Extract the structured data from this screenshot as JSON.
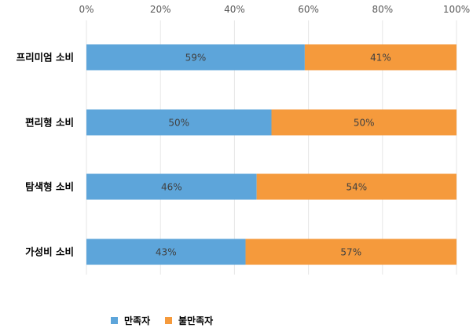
{
  "chart_data": {
    "type": "bar",
    "orientation": "horizontal",
    "stacked": true,
    "title": "",
    "xlabel": "",
    "ylabel": "",
    "xlim": [
      0,
      100
    ],
    "x_ticks": [
      "0%",
      "20%",
      "40%",
      "60%",
      "80%",
      "100%"
    ],
    "x_tick_values": [
      0,
      20,
      40,
      60,
      80,
      100
    ],
    "x_axis_position": "top",
    "grid": true,
    "legend_position": "bottom",
    "categories": [
      "프리미엄 소비",
      "편리형 소비",
      "탐색형 소비",
      "가성비 소비"
    ],
    "series": [
      {
        "name": "만족자",
        "color": "#5DA5DA",
        "values": [
          59,
          50,
          46,
          43
        ],
        "labels": [
          "59%",
          "50%",
          "46%",
          "43%"
        ]
      },
      {
        "name": "불만족자",
        "color": "#F59A3C",
        "values": [
          41,
          50,
          54,
          57
        ],
        "labels": [
          "41%",
          "50%",
          "54%",
          "57%"
        ]
      }
    ]
  }
}
